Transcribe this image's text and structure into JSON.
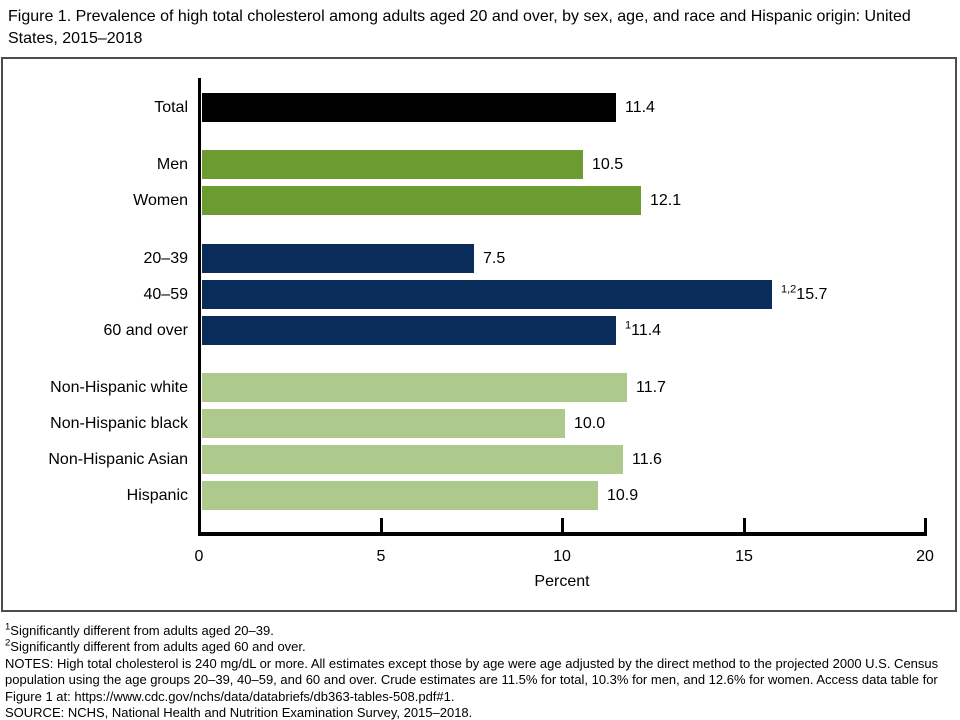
{
  "title": "Figure 1. Prevalence of high total cholesterol among adults aged 20 and over, by sex, age, and race and Hispanic origin: United States, 2015–2018",
  "chart_data": {
    "type": "bar",
    "orientation": "horizontal",
    "xlabel": "Percent",
    "xlim": [
      0,
      20
    ],
    "xticks": [
      "0",
      "5",
      "10",
      "15",
      "20"
    ],
    "categories": [
      "Total",
      "Men",
      "Women",
      "20–39",
      "40–59",
      "60 and over",
      "Non-Hispanic white",
      "Non-Hispanic black",
      "Non-Hispanic Asian",
      "Hispanic"
    ],
    "values": [
      11.4,
      10.5,
      12.1,
      7.5,
      15.7,
      11.4,
      11.7,
      10.0,
      11.6,
      10.9
    ],
    "rows": [
      {
        "label": "Total",
        "value": 11.4,
        "display": "11.4",
        "sup": "",
        "group": "total"
      },
      {
        "label": "Men",
        "value": 10.5,
        "display": "10.5",
        "sup": "",
        "group": "sex"
      },
      {
        "label": "Women",
        "value": 12.1,
        "display": "12.1",
        "sup": "",
        "group": "sex"
      },
      {
        "label": "20–39",
        "value": 7.5,
        "display": "7.5",
        "sup": "",
        "group": "age"
      },
      {
        "label": "40–59",
        "value": 15.7,
        "display": "15.7",
        "sup": "1,2",
        "group": "age"
      },
      {
        "label": "60 and over",
        "value": 11.4,
        "display": "11.4",
        "sup": "1",
        "group": "age"
      },
      {
        "label": "Non-Hispanic white",
        "value": 11.7,
        "display": "11.7",
        "sup": "",
        "group": "race"
      },
      {
        "label": "Non-Hispanic black",
        "value": 10.0,
        "display": "10.0",
        "sup": "",
        "group": "race"
      },
      {
        "label": "Non-Hispanic Asian",
        "value": 11.6,
        "display": "11.6",
        "sup": "",
        "group": "race"
      },
      {
        "label": "Hispanic",
        "value": 10.9,
        "display": "10.9",
        "sup": "",
        "group": "race"
      }
    ],
    "colors": {
      "total": "#000000",
      "sex": "#6b9b31",
      "age": "#0a2c5a",
      "race": "#adc98c"
    },
    "grid": false,
    "legend": false
  },
  "footnotes": [
    {
      "sup": "1",
      "text": "Significantly different from adults aged 20–39."
    },
    {
      "sup": "2",
      "text": "Significantly different from adults aged 60 and over."
    },
    {
      "sup": "",
      "text": "NOTES: High total cholesterol is 240 mg/dL or more. All estimates except those by age were age adjusted by the direct method to the projected 2000 U.S. Census population using the age groups 20–39, 40–59, and 60 and over. Crude estimates are 11.5% for total, 10.3% for men, and 12.6% for women. Access data table for Figure 1 at: https://www.cdc.gov/nchs/data/databriefs/db363-tables-508.pdf#1."
    },
    {
      "sup": "",
      "text": "SOURCE: NCHS, National Health and Nutrition Examination Survey, 2015–2018."
    }
  ]
}
